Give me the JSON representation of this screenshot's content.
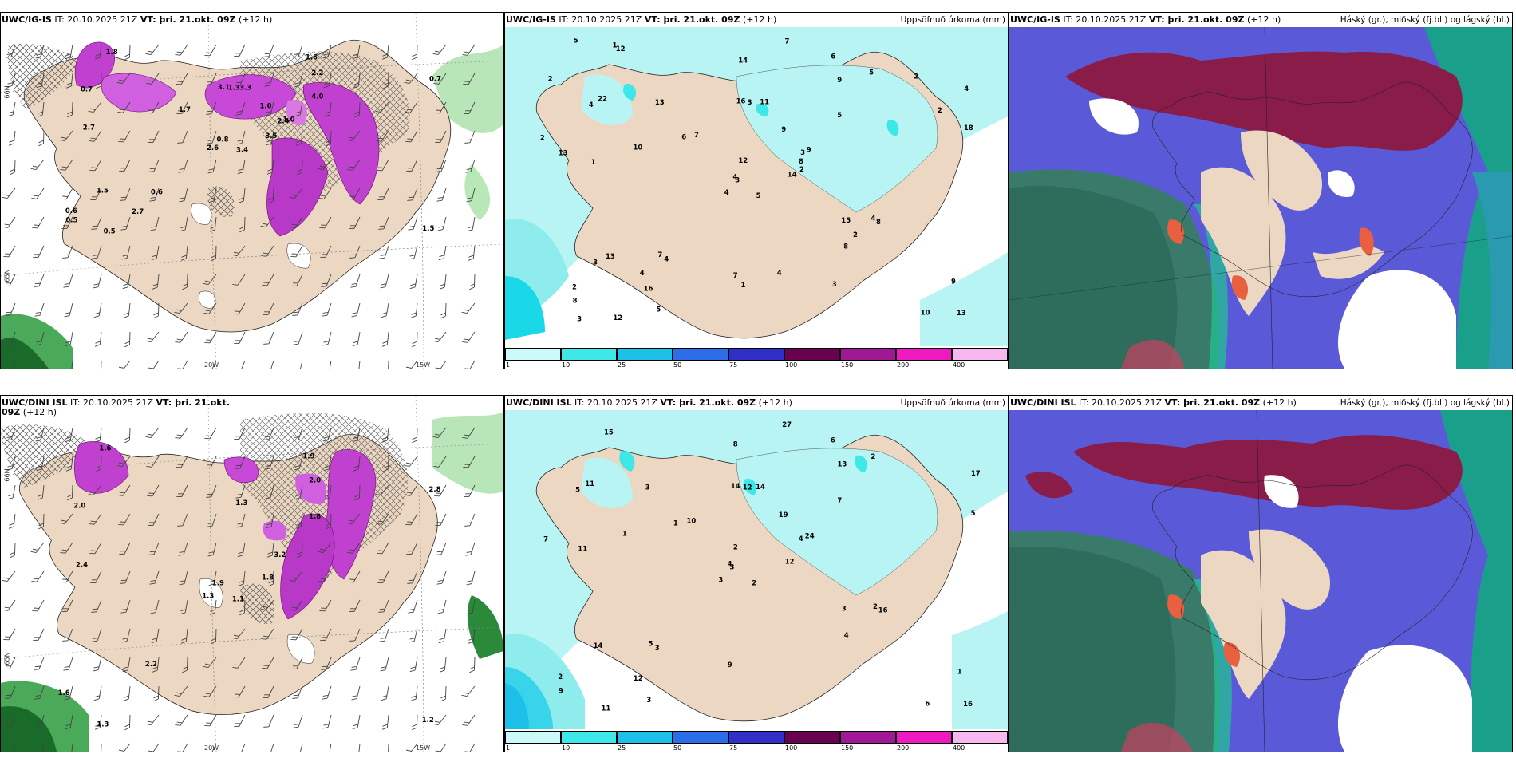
{
  "panels": [
    {
      "model": "UWC/IG-IS",
      "it": "IT: 20.10.2025 21Z",
      "vt": "VT: þri. 21.okt. 09Z",
      "lead": "(+12 h)",
      "right": ""
    },
    {
      "model": "UWC/IG-IS",
      "it": "IT: 20.10.2025 21Z",
      "vt": "VT: þri. 21.okt. 09Z",
      "lead": "(+12 h)",
      "right": "Uppsöfnuð úrkoma (mm)"
    },
    {
      "model": "UWC/IG-IS",
      "it": "IT: 20.10.2025 21Z",
      "vt": "VT: þri. 21.okt. 09Z",
      "lead": "(+12 h)",
      "right": "Háský (gr.), miðský (fj.bl.) og lágský (bl.)"
    },
    {
      "model": "UWC/DINI ISL",
      "it": "IT: 20.10.2025 21Z",
      "vt": "VT: þri. 21.okt. 09Z",
      "lead": "(+12 h)",
      "right": ""
    },
    {
      "model": "UWC/DINI ISL",
      "it": "IT: 20.10.2025 21Z",
      "vt": "VT: þri. 21.okt. 09Z",
      "lead": "(+12 h)",
      "right": "Uppsöfnuð úrkoma (mm)"
    },
    {
      "model": "UWC/DINI ISL",
      "it": "IT: 20.10.2025 21Z",
      "vt": "VT: þri. 21.okt. 09Z",
      "lead": "(+12 h)",
      "right": "Háský (gr.), miðský (fj.bl.) og lágský (bl.)"
    }
  ],
  "axis": {
    "lon1": "20W",
    "lon2": "15W",
    "lat1": "66N",
    "lat2": "65N"
  },
  "legend": {
    "ticks": [
      "1",
      "10",
      "25",
      "50",
      "75",
      "100",
      "150",
      "200",
      "400"
    ],
    "colors": [
      "#ccfafa",
      "#3ee8e8",
      "#1cc0e8",
      "#2c6ee8",
      "#3030c8",
      "#6a0050",
      "#a01896",
      "#f018c0",
      "#f7b8f0"
    ]
  },
  "precip_ig": [
    "5",
    "4",
    "3",
    "2",
    "3",
    "4",
    "6",
    "11",
    "9",
    "14",
    "12",
    "13",
    "1",
    "4",
    "4",
    "5",
    "12",
    "16",
    "9",
    "13",
    "7",
    "8",
    "16",
    "3",
    "9",
    "8",
    "22",
    "14",
    "13",
    "15",
    "18",
    "4",
    "7",
    "12",
    "13",
    "5",
    "7",
    "10",
    "9",
    "4",
    "7",
    "6",
    "10",
    "8",
    "5",
    "2",
    "8",
    "3",
    "1",
    "2",
    "3",
    "2",
    "2",
    "2",
    "3",
    "4",
    "1",
    "5",
    "4",
    "2"
  ],
  "precip_dini": [
    "2",
    "5",
    "3",
    "2",
    "4",
    "3",
    "6",
    "14",
    "13",
    "12",
    "15",
    "16",
    "11",
    "17",
    "3",
    "7",
    "11",
    "14",
    "19",
    "14",
    "10",
    "9",
    "12",
    "12",
    "24",
    "16",
    "11",
    "8",
    "7",
    "3",
    "5",
    "4",
    "9",
    "2",
    "3",
    "2",
    "5",
    "6",
    "1",
    "2",
    "27",
    "1",
    "1",
    "4",
    "3"
  ],
  "temp_ig": [
    "3.4",
    "0.7",
    "0.8",
    "0.6",
    "2.4",
    "0.6",
    "1.6",
    "3.3",
    "2.2",
    "3.5",
    "1.8",
    "1.5",
    "2.7",
    "0.7",
    "2.6",
    "4.0",
    "0.5",
    "3.1",
    "1.0",
    "1.5",
    "1.7",
    "0.5",
    "2.7",
    "1.3",
    "1.0"
  ],
  "temp_dini": [
    "1.1",
    "2.0",
    "1.9",
    "1.6",
    "3.2",
    "2.2",
    "1.9",
    "1.3",
    "2.0",
    "1.8",
    "1.6",
    "1.2",
    "2.4",
    "2.8",
    "1.3",
    "1.8",
    "1.3"
  ]
}
